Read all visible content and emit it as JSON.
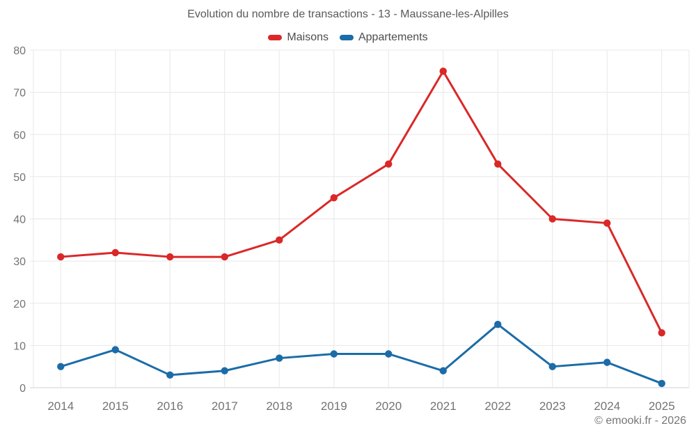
{
  "title": "Evolution du nombre de transactions - 13 - Maussane-les-Alpilles",
  "footer": "© emooki.fr - 2026",
  "colors": {
    "maisons_red": "#da2828",
    "appartements_blue": "#1b6ca8",
    "grid": "#e7e7e7",
    "axis_line": "#cfcfcf",
    "tick_label": "#737373"
  },
  "legend": {
    "items": [
      {
        "label": "Maisons",
        "color": "#da2828"
      },
      {
        "label": "Appartements",
        "color": "#1b6ca8"
      }
    ]
  },
  "chart_data": {
    "type": "line",
    "title": "Evolution du nombre de transactions - 13 - Maussane-les-Alpilles",
    "categories": [
      "2014",
      "2015",
      "2016",
      "2017",
      "2018",
      "2019",
      "2020",
      "2021",
      "2022",
      "2023",
      "2024",
      "2025"
    ],
    "series": [
      {
        "name": "Maisons",
        "color": "#da2828",
        "values": [
          31,
          32,
          31,
          31,
          35,
          45,
          53,
          75,
          53,
          40,
          39,
          13
        ]
      },
      {
        "name": "Appartements",
        "color": "#1b6ca8",
        "values": [
          5,
          9,
          3,
          4,
          7,
          8,
          8,
          4,
          15,
          5,
          6,
          1
        ]
      }
    ],
    "xlabel": "",
    "ylabel": "",
    "ylim": [
      0,
      80
    ],
    "yticks": [
      0,
      10,
      20,
      30,
      40,
      50,
      60,
      70,
      80
    ],
    "grid": true,
    "legend_position": "top",
    "marker": "circle"
  }
}
